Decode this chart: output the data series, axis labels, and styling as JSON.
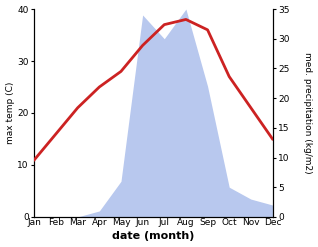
{
  "months": [
    "Jan",
    "Feb",
    "Mar",
    "Apr",
    "May",
    "Jun",
    "Jul",
    "Aug",
    "Sep",
    "Oct",
    "Nov",
    "Dec"
  ],
  "temperature": [
    11,
    16,
    21,
    25,
    28,
    33,
    37,
    38,
    36,
    27,
    21,
    15
  ],
  "precipitation": [
    0,
    0,
    0,
    1,
    6,
    34,
    30,
    35,
    22,
    5,
    3,
    2
  ],
  "temp_color": "#cc2222",
  "precip_color": "#b8c8ee",
  "ylim_temp": [
    0,
    40
  ],
  "ylim_precip": [
    0,
    35
  ],
  "yticks_temp": [
    0,
    10,
    20,
    30,
    40
  ],
  "yticks_precip": [
    0,
    5,
    10,
    15,
    20,
    25,
    30,
    35
  ],
  "ylabel_left": "max temp (C)",
  "ylabel_right": "med. precipitation (kg/m2)",
  "xlabel": "date (month)",
  "background_color": "#ffffff",
  "temp_linewidth": 2.0,
  "figwidth": 3.18,
  "figheight": 2.47,
  "dpi": 100
}
